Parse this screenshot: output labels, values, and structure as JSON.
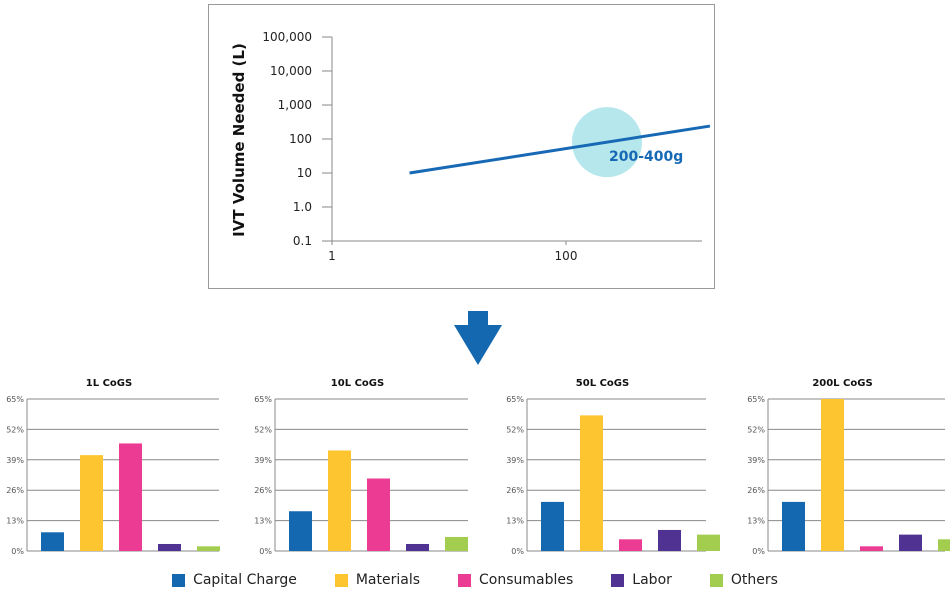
{
  "chart_data": [
    {
      "type": "line",
      "ylabel": "IVT Volume Needed (L)",
      "yscale": "log",
      "xscale": "log",
      "yticks": [
        "0.1",
        "1.0",
        "10",
        "100",
        "1,000",
        "10,000",
        "100,000"
      ],
      "ytick_values": [
        0.1,
        1,
        10,
        100,
        1000,
        10000,
        100000
      ],
      "xticks": [
        "1",
        "100"
      ],
      "xtick_values": [
        1,
        100
      ],
      "ylim": [
        0.1,
        100000
      ],
      "series": [
        {
          "color": "#1769b5",
          "points": [
            [
              4.6,
              10
            ],
            [
              1700,
              240
            ]
          ]
        }
      ],
      "annotation": {
        "text": "200-400g",
        "center": [
          224,
          81
        ],
        "color": "#1769b5",
        "circle_color": "#b5e7ec"
      }
    },
    {
      "type": "bar",
      "title": "1L CoGS",
      "values": [
        8,
        41,
        46,
        3,
        2
      ]
    },
    {
      "type": "bar",
      "title": "10L CoGS",
      "values": [
        17,
        43,
        31,
        3,
        6
      ]
    },
    {
      "type": "bar",
      "title": "50L CoGS",
      "values": [
        21,
        58,
        5,
        9,
        7
      ]
    },
    {
      "type": "bar",
      "title": "200L CoGS",
      "values": [
        21,
        65,
        2,
        7,
        5
      ]
    }
  ],
  "bar_yticks": [
    "0%",
    "13%",
    "26%",
    "39%",
    "52%",
    "65%"
  ],
  "bar_ylim": [
    0,
    65
  ],
  "categories": [
    "Capital Charge",
    "Materials",
    "Consumables",
    "Labor",
    "Others"
  ],
  "colors": [
    "#1468b0",
    "#fdc52f",
    "#eb3b93",
    "#4f3291",
    "#a2cd4e"
  ],
  "arrow_color": "#1468b0"
}
